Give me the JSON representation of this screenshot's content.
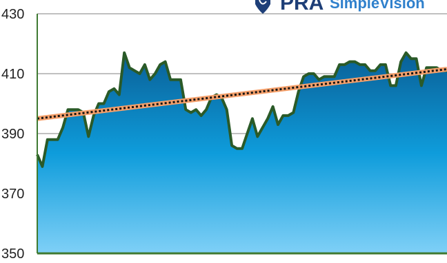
{
  "chart_data": {
    "type": "area",
    "title": "",
    "xlabel": "",
    "ylabel": "",
    "ylim": [
      350,
      430
    ],
    "yticks": [
      430,
      410,
      390,
      370,
      350
    ],
    "grid": true,
    "legend": "none",
    "series": [
      {
        "kind": "area",
        "values": [
          383,
          379,
          388,
          388,
          388,
          392,
          398,
          398,
          398,
          397,
          389,
          396,
          400,
          400,
          404,
          405,
          403,
          417,
          412,
          411,
          410,
          413,
          408,
          410,
          413,
          414,
          408,
          408,
          408,
          398,
          397,
          398,
          396,
          398,
          402,
          403,
          402,
          398,
          386,
          385,
          385,
          390,
          395,
          389,
          392,
          395,
          399,
          393,
          396,
          396,
          397,
          404,
          409,
          410,
          410,
          408,
          409,
          409,
          409,
          413,
          413,
          414,
          414,
          413,
          413,
          411,
          411,
          413,
          413,
          406,
          406,
          414,
          417,
          415,
          415,
          406,
          412,
          412,
          412,
          411,
          411
        ]
      },
      {
        "kind": "trendline",
        "start": 395,
        "end": 411.5
      }
    ],
    "colors": {
      "area_top": "#0a5f96",
      "area_mid": "#0e9cdb",
      "area_bottom": "#7fd0f7",
      "line": "#2a5a28",
      "trend_outer": "#f5a06b",
      "trend_inner": "#141414",
      "grid": "#9a9a9a",
      "frame": "#3f7a31"
    }
  },
  "logo": {
    "mark": "PRA",
    "sub": "SimpleVision"
  },
  "icons": {
    "logo_icon": "shield-swoosh-icon"
  }
}
